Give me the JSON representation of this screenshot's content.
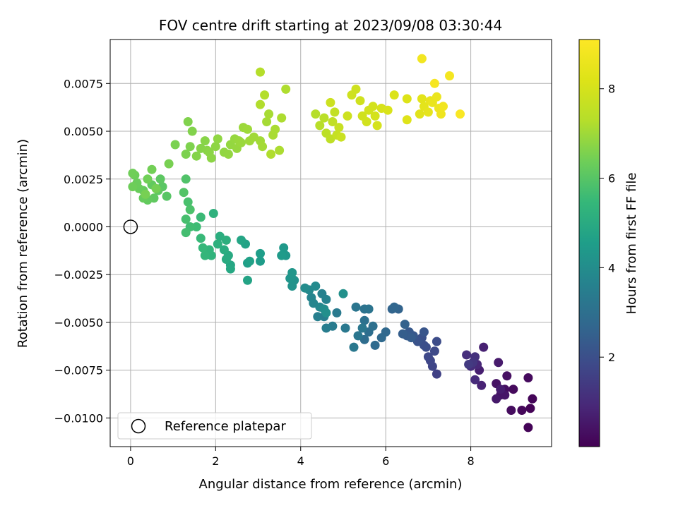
{
  "chart_data": {
    "type": "scatter",
    "title": "FOV centre drift starting at 2023/09/08 03:30:44",
    "xlabel": "Angular distance from reference (arcmin)",
    "ylabel": "Rotation from reference (arcmin)",
    "xlim": [
      -0.48,
      9.9
    ],
    "ylim": [
      -0.0115,
      0.0098
    ],
    "xticks": [
      0,
      2,
      4,
      6,
      8
    ],
    "yticks": [
      -0.01,
      -0.0075,
      -0.005,
      -0.0025,
      0.0,
      0.0025,
      0.005,
      0.0075
    ],
    "xtick_labels": [
      "0",
      "2",
      "4",
      "6",
      "8"
    ],
    "ytick_labels": [
      "−0.0100",
      "−0.0075",
      "−0.0050",
      "−0.0025",
      "0.0000",
      "0.0025",
      "0.0050",
      "0.0075"
    ],
    "grid": true,
    "legend": {
      "placement": "lower-left",
      "entries": [
        "Reference platepar"
      ]
    },
    "colorbar": {
      "label": "Hours from first FF file",
      "colormap": "viridis",
      "range": [
        0.0,
        9.1
      ],
      "ticks": [
        2,
        4,
        6,
        8
      ],
      "tick_labels": [
        "2",
        "4",
        "6",
        "8"
      ]
    },
    "reference_point": {
      "x": 0.0,
      "y": 0.0
    },
    "series": [
      {
        "points": [
          [
            9.4,
            -0.0095,
            0.05
          ],
          [
            9.35,
            -0.0105,
            0.08
          ],
          [
            9.45,
            -0.009,
            0.1
          ],
          [
            9.2,
            -0.0096,
            0.15
          ],
          [
            9.0,
            -0.0085,
            0.2
          ],
          [
            9.35,
            -0.0079,
            0.22
          ],
          [
            8.95,
            -0.0096,
            0.25
          ],
          [
            8.8,
            -0.0085,
            0.3
          ],
          [
            8.85,
            -0.0078,
            0.35
          ],
          [
            8.6,
            -0.0082,
            0.4
          ],
          [
            8.7,
            -0.0088,
            0.45
          ],
          [
            8.8,
            -0.0088,
            0.5
          ],
          [
            8.6,
            -0.009,
            0.55
          ],
          [
            8.65,
            -0.0071,
            0.6
          ],
          [
            8.7,
            -0.0085,
            0.65
          ],
          [
            8.2,
            -0.0075,
            0.7
          ],
          [
            8.3,
            -0.0063,
            0.75
          ],
          [
            8.25,
            -0.0083,
            0.8
          ],
          [
            8.15,
            -0.0072,
            0.9
          ],
          [
            8.1,
            -0.008,
            1.0
          ],
          [
            8.0,
            -0.0073,
            1.05
          ],
          [
            7.9,
            -0.0067,
            1.1
          ],
          [
            8.1,
            -0.0068,
            1.2
          ],
          [
            8.05,
            -0.0071,
            1.3
          ],
          [
            7.95,
            -0.0072,
            1.4
          ],
          [
            7.2,
            -0.0077,
            1.6
          ],
          [
            7.1,
            -0.0073,
            1.7
          ],
          [
            7.05,
            -0.007,
            1.75
          ],
          [
            7.0,
            -0.0068,
            1.8
          ],
          [
            7.15,
            -0.0065,
            1.85
          ],
          [
            7.2,
            -0.006,
            1.9
          ],
          [
            6.95,
            -0.0063,
            1.95
          ],
          [
            6.9,
            -0.0062,
            2.0
          ],
          [
            6.85,
            -0.0058,
            2.05
          ],
          [
            6.75,
            -0.006,
            2.1
          ],
          [
            6.9,
            -0.0055,
            2.2
          ],
          [
            6.65,
            -0.0057,
            2.25
          ],
          [
            6.55,
            -0.0055,
            2.3
          ],
          [
            6.5,
            -0.0057,
            2.35
          ],
          [
            6.6,
            -0.0058,
            2.4
          ],
          [
            6.4,
            -0.0056,
            2.45
          ],
          [
            6.45,
            -0.0051,
            2.55
          ],
          [
            6.3,
            -0.0043,
            2.6
          ],
          [
            6.15,
            -0.0043,
            2.65
          ],
          [
            6.2,
            -0.0042,
            2.7
          ],
          [
            6.0,
            -0.0055,
            2.75
          ],
          [
            5.9,
            -0.0058,
            2.8
          ],
          [
            5.75,
            -0.0062,
            2.85
          ],
          [
            5.5,
            -0.0059,
            2.9
          ],
          [
            5.6,
            -0.0055,
            2.95
          ],
          [
            5.7,
            -0.0052,
            3.0
          ],
          [
            5.5,
            -0.0049,
            3.05
          ],
          [
            5.5,
            -0.0043,
            3.1
          ],
          [
            5.6,
            -0.0043,
            3.15
          ],
          [
            5.3,
            -0.0042,
            3.2
          ],
          [
            5.35,
            -0.0057,
            3.22
          ],
          [
            5.45,
            -0.0053,
            3.25
          ],
          [
            5.25,
            -0.0063,
            3.28
          ],
          [
            5.05,
            -0.0053,
            3.3
          ],
          [
            4.85,
            -0.0045,
            3.35
          ],
          [
            4.75,
            -0.0052,
            3.4
          ],
          [
            4.6,
            -0.0053,
            3.45
          ],
          [
            4.55,
            -0.0047,
            3.5
          ],
          [
            4.4,
            -0.0047,
            3.55
          ],
          [
            4.5,
            -0.0035,
            3.6
          ],
          [
            4.6,
            -0.0038,
            3.65
          ],
          [
            4.25,
            -0.0037,
            3.7
          ],
          [
            4.3,
            -0.004,
            3.75
          ],
          [
            4.45,
            -0.0042,
            3.8
          ],
          [
            4.2,
            -0.0033,
            3.85
          ],
          [
            4.35,
            -0.0031,
            3.9
          ],
          [
            4.1,
            -0.0032,
            3.95
          ],
          [
            4.55,
            -0.0043,
            4.0
          ],
          [
            4.6,
            -0.0045,
            4.05
          ],
          [
            5.0,
            -0.0035,
            4.1
          ],
          [
            3.85,
            -0.0028,
            4.15
          ],
          [
            3.8,
            -0.0031,
            4.2
          ],
          [
            3.75,
            -0.0027,
            4.25
          ],
          [
            3.8,
            -0.0024,
            4.3
          ],
          [
            3.65,
            -0.0015,
            4.35
          ],
          [
            3.6,
            -0.0011,
            4.4
          ],
          [
            3.55,
            -0.0015,
            4.45
          ],
          [
            3.05,
            -0.0018,
            4.5
          ],
          [
            3.05,
            -0.0014,
            4.55
          ],
          [
            2.75,
            -0.0019,
            4.6
          ],
          [
            2.8,
            -0.0018,
            4.65
          ],
          [
            2.7,
            -0.0009,
            4.7
          ],
          [
            2.75,
            -0.0028,
            4.75
          ],
          [
            2.6,
            -0.0007,
            4.8
          ],
          [
            2.35,
            -0.002,
            4.85
          ],
          [
            2.35,
            -0.0022,
            4.9
          ],
          [
            2.3,
            -0.0015,
            4.95
          ],
          [
            2.25,
            -0.0017,
            5.0
          ],
          [
            2.2,
            -0.0012,
            5.05
          ],
          [
            2.1,
            -0.0005,
            5.1
          ],
          [
            2.25,
            -0.0007,
            5.15
          ],
          [
            2.05,
            -0.0009,
            5.2
          ],
          [
            1.95,
            0.0007,
            5.25
          ],
          [
            1.9,
            -0.0015,
            5.3
          ],
          [
            1.85,
            -0.0012,
            5.35
          ],
          [
            1.75,
            -0.0015,
            5.4
          ],
          [
            1.7,
            -0.0011,
            5.45
          ],
          [
            1.65,
            -0.0006,
            5.5
          ],
          [
            1.65,
            0.0005,
            5.55
          ],
          [
            1.55,
            0.0,
            5.6
          ],
          [
            1.4,
            0.0,
            5.65
          ],
          [
            1.3,
            -0.0003,
            5.7
          ],
          [
            1.3,
            0.0004,
            5.75
          ],
          [
            1.35,
            0.0013,
            5.8
          ],
          [
            1.4,
            0.0009,
            5.85
          ],
          [
            1.3,
            0.0025,
            5.9
          ],
          [
            1.25,
            0.0018,
            5.95
          ],
          [
            0.85,
            0.0016,
            6.0
          ],
          [
            0.75,
            0.0021,
            6.05
          ],
          [
            0.7,
            0.0025,
            6.1
          ],
          [
            0.65,
            0.0019,
            6.12
          ],
          [
            0.55,
            0.0015,
            6.15
          ],
          [
            0.5,
            0.0022,
            6.18
          ],
          [
            0.4,
            0.0014,
            6.2
          ],
          [
            0.3,
            0.0019,
            6.22
          ],
          [
            0.3,
            0.0015,
            6.25
          ],
          [
            0.2,
            0.002,
            6.28
          ],
          [
            0.15,
            0.0023,
            6.3
          ],
          [
            0.1,
            0.0027,
            6.32
          ],
          [
            0.05,
            0.0021,
            6.35
          ],
          [
            0.05,
            0.0028,
            6.38
          ],
          [
            0.4,
            0.0025,
            6.4
          ],
          [
            0.5,
            0.003,
            6.42
          ],
          [
            0.6,
            0.002,
            6.45
          ],
          [
            0.35,
            0.0017,
            6.48
          ],
          [
            0.9,
            0.0033,
            6.5
          ],
          [
            1.05,
            0.0043,
            6.52
          ],
          [
            1.3,
            0.0038,
            6.55
          ],
          [
            1.4,
            0.0042,
            6.58
          ],
          [
            1.35,
            0.0055,
            6.6
          ],
          [
            1.45,
            0.005,
            6.62
          ],
          [
            1.55,
            0.0037,
            6.65
          ],
          [
            1.65,
            0.0041,
            6.68
          ],
          [
            1.75,
            0.0045,
            6.7
          ],
          [
            1.8,
            0.004,
            6.72
          ],
          [
            1.85,
            0.0039,
            6.74
          ],
          [
            1.9,
            0.0036,
            6.76
          ],
          [
            2.0,
            0.0042,
            6.78
          ],
          [
            2.05,
            0.0046,
            6.8
          ],
          [
            2.2,
            0.0039,
            6.82
          ],
          [
            2.3,
            0.0038,
            6.84
          ],
          [
            2.35,
            0.0043,
            6.86
          ],
          [
            2.45,
            0.0046,
            6.88
          ],
          [
            2.5,
            0.0041,
            6.9
          ],
          [
            2.55,
            0.0045,
            6.92
          ],
          [
            2.6,
            0.0044,
            6.94
          ],
          [
            2.65,
            0.0052,
            6.96
          ],
          [
            2.75,
            0.0051,
            6.98
          ],
          [
            2.8,
            0.0045,
            7.0
          ],
          [
            2.9,
            0.0047,
            7.02
          ],
          [
            3.05,
            0.0045,
            7.04
          ],
          [
            3.1,
            0.0042,
            7.06
          ],
          [
            3.2,
            0.0055,
            7.08
          ],
          [
            3.25,
            0.0059,
            7.1
          ],
          [
            3.35,
            0.0048,
            7.12
          ],
          [
            3.4,
            0.0051,
            7.14
          ],
          [
            3.5,
            0.004,
            7.16
          ],
          [
            3.55,
            0.0057,
            7.18
          ],
          [
            3.65,
            0.0072,
            7.2
          ],
          [
            3.3,
            0.0038,
            7.22
          ],
          [
            3.05,
            0.0064,
            7.24
          ],
          [
            3.15,
            0.0069,
            7.26
          ],
          [
            3.05,
            0.0081,
            7.28
          ],
          [
            4.35,
            0.0059,
            7.3
          ],
          [
            4.45,
            0.0053,
            7.35
          ],
          [
            4.55,
            0.0057,
            7.4
          ],
          [
            4.6,
            0.0049,
            7.45
          ],
          [
            4.7,
            0.0046,
            7.5
          ],
          [
            4.75,
            0.0055,
            7.55
          ],
          [
            4.8,
            0.006,
            7.6
          ],
          [
            4.85,
            0.0048,
            7.65
          ],
          [
            4.9,
            0.0052,
            7.7
          ],
          [
            4.95,
            0.0047,
            7.75
          ],
          [
            4.7,
            0.0065,
            7.8
          ],
          [
            5.1,
            0.0058,
            7.82
          ],
          [
            5.2,
            0.0069,
            7.84
          ],
          [
            5.3,
            0.0072,
            7.86
          ],
          [
            5.4,
            0.0066,
            7.88
          ],
          [
            5.45,
            0.0058,
            7.9
          ],
          [
            5.55,
            0.0055,
            7.92
          ],
          [
            5.6,
            0.0061,
            7.94
          ],
          [
            5.7,
            0.0063,
            7.96
          ],
          [
            5.75,
            0.0058,
            7.98
          ],
          [
            5.8,
            0.0053,
            8.0
          ],
          [
            5.9,
            0.0062,
            8.05
          ],
          [
            6.05,
            0.0061,
            8.1
          ],
          [
            6.2,
            0.0069,
            8.15
          ],
          [
            6.5,
            0.0067,
            8.2
          ],
          [
            6.5,
            0.0056,
            8.25
          ],
          [
            6.8,
            0.0059,
            8.3
          ],
          [
            6.85,
            0.0067,
            8.35
          ],
          [
            6.9,
            0.0063,
            8.4
          ],
          [
            7.0,
            0.006,
            8.45
          ],
          [
            7.05,
            0.0066,
            8.5
          ],
          [
            7.1,
            0.0065,
            8.55
          ],
          [
            7.2,
            0.0068,
            8.6
          ],
          [
            7.25,
            0.0062,
            8.65
          ],
          [
            7.3,
            0.0059,
            8.7
          ],
          [
            7.35,
            0.0063,
            8.75
          ],
          [
            6.85,
            0.0088,
            8.8
          ],
          [
            7.5,
            0.0079,
            8.85
          ],
          [
            7.15,
            0.0075,
            8.9
          ],
          [
            7.75,
            0.0059,
            9.0
          ]
        ]
      }
    ]
  }
}
